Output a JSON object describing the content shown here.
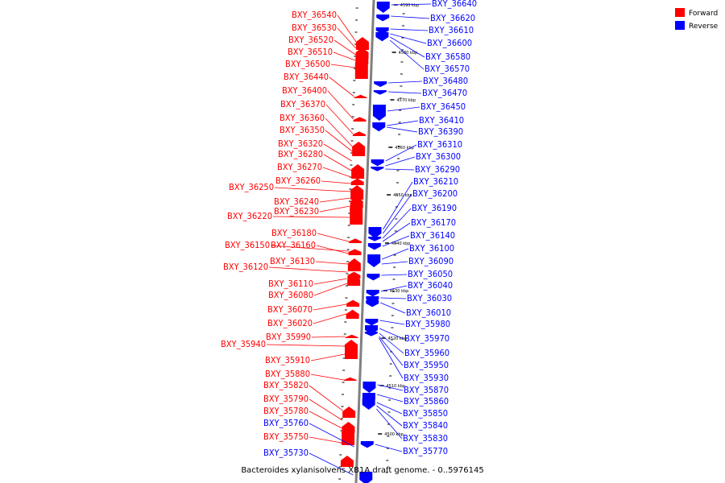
{
  "title": "Bacteroides xylanisolvens XB1A draft genome. - 0..5976145",
  "legend": [
    {
      "label": "Forward",
      "color": "#ff0000"
    },
    {
      "label": "Reverse",
      "color": "#0000ff"
    }
  ],
  "colors": {
    "forward": "#ff0000",
    "reverse": "#0000ff",
    "backbone": "#808080"
  },
  "ticks": [
    "4590 kbp",
    "4580 kbp",
    "4570 kbp",
    "4560 kbp",
    "4550 kbp",
    "4540 kbp",
    "4530 kbp",
    "4520 kbp",
    "4510 kbp",
    "4500 kbp"
  ],
  "forward_genes": [
    "BXY_36540",
    "BXY_36530",
    "BXY_36520",
    "BXY_36510",
    "BXY_36500",
    "BXY_36440",
    "BXY_36400",
    "BXY_36370",
    "BXY_36360",
    "BXY_36350",
    "BXY_36320",
    "BXY_36280",
    "BXY_36270",
    "BXY_36260",
    "BXY_36250",
    "BXY_36240",
    "BXY_36230",
    "BXY_36220",
    "BXY_36180",
    "BXY_36150",
    "BXY_36160",
    "BXY_36130",
    "BXY_36120",
    "BXY_36110",
    "BXY_36080",
    "BXY_36070",
    "BXY_36020",
    "BXY_35990",
    "BXY_35940",
    "BXY_35910",
    "BXY_35880",
    "BXY_35820",
    "BXY_35790",
    "BXY_35780",
    "BXY_35750"
  ],
  "reverse_genes_left": [
    "BXY_35760",
    "BXY_35730"
  ],
  "reverse_genes": [
    "BXY_36640",
    "BXY_36620",
    "BXY_36610",
    "BXY_36600",
    "BXY_36580",
    "BXY_36570",
    "BXY_36480",
    "BXY_36470",
    "BXY_36450",
    "BXY_36410",
    "BXY_36390",
    "BXY_36310",
    "BXY_36300",
    "BXY_36290",
    "BXY_36210",
    "BXY_36200",
    "BXY_36190",
    "BXY_36170",
    "BXY_36140",
    "BXY_36100",
    "BXY_36090",
    "BXY_36050",
    "BXY_36040",
    "BXY_36030",
    "BXY_36010",
    "BXY_35980",
    "BXY_35970",
    "BXY_35960",
    "BXY_35950",
    "BXY_35930",
    "BXY_35870",
    "BXY_35860",
    "BXY_35850",
    "BXY_35840",
    "BXY_35830",
    "BXY_35770"
  ]
}
